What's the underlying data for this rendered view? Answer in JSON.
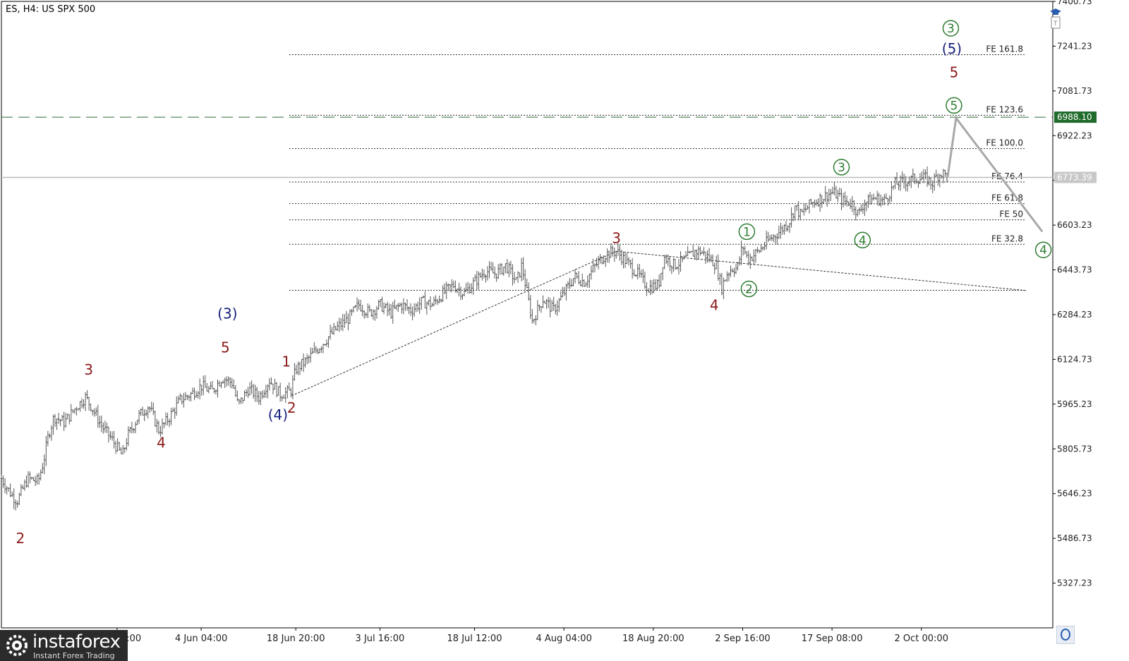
{
  "header": {
    "title": "ES, H4:  US SPX 500",
    "tool_t": "t"
  },
  "colors": {
    "wave_green": "#2e7d32",
    "wave_red": "#8b1a1a",
    "wave_navy": "#1a237e",
    "price_tag_bg": "#1f6b2a",
    "current_tag": "#c8c8c8"
  },
  "logo": {
    "name": "instaforex",
    "tagline": "Instant Forex Trading"
  },
  "chart_data": {
    "type": "candlestick-line",
    "symbol": "ES",
    "timeframe": "H4",
    "instrument": "US SPX 500",
    "ylim": [
      5170,
      7400
    ],
    "y_ticks": [
      "7400.73",
      "7241.23",
      "7081.73",
      "6922.23",
      "6763.23",
      "6603.23",
      "6443.73",
      "6284.23",
      "6124.73",
      "5965.23",
      "5805.73",
      "5646.23",
      "5486.73",
      "5327.23"
    ],
    "y_tick_values": [
      7400.73,
      7241.23,
      7081.73,
      6922.23,
      6763.23,
      6603.23,
      6443.73,
      6284.23,
      6124.73,
      5965.23,
      5805.73,
      5646.23,
      5486.73,
      5327.23
    ],
    "x_ticks": [
      "May 08:00",
      "4 Jun 04:00",
      "18 Jun 20:00",
      "3 Jul 16:00",
      "18 Jul 12:00",
      "4 Aug 04:00",
      "18 Aug 20:00",
      "2 Sep 16:00",
      "17 Sep 08:00",
      "2 Oct 00:00"
    ],
    "x_tick_index": [
      0.11,
      0.19,
      0.28,
      0.36,
      0.45,
      0.535,
      0.62,
      0.705,
      0.79,
      0.875
    ],
    "price_tags": {
      "target": "6988.10",
      "current": "6773.39"
    },
    "target_level": 6988.1,
    "current_level": 6773.39,
    "fib_levels": [
      {
        "label": "FE 161.8",
        "value": 7211
      },
      {
        "label": "FE 123.6",
        "value": 6995
      },
      {
        "label": "FE 100.0",
        "value": 6876
      },
      {
        "label": "FE 76.4",
        "value": 6757
      },
      {
        "label": "FE 61.8",
        "value": 6680
      },
      {
        "label": "FE 50",
        "value": 6622
      },
      {
        "label": "FE 32.8",
        "value": 6535
      },
      {
        "label": "",
        "value": 6371
      }
    ],
    "price_path": [
      [
        0.0,
        5700
      ],
      [
        0.01,
        5640
      ],
      [
        0.015,
        5620
      ],
      [
        0.025,
        5700
      ],
      [
        0.035,
        5690
      ],
      [
        0.04,
        5760
      ],
      [
        0.045,
        5860
      ],
      [
        0.05,
        5920
      ],
      [
        0.06,
        5900
      ],
      [
        0.07,
        5950
      ],
      [
        0.08,
        5990
      ],
      [
        0.085,
        5960
      ],
      [
        0.095,
        5890
      ],
      [
        0.105,
        5840
      ],
      [
        0.115,
        5780
      ],
      [
        0.12,
        5850
      ],
      [
        0.13,
        5920
      ],
      [
        0.14,
        5960
      ],
      [
        0.15,
        5870
      ],
      [
        0.16,
        5920
      ],
      [
        0.17,
        5980
      ],
      [
        0.18,
        6000
      ],
      [
        0.19,
        6030
      ],
      [
        0.2,
        6010
      ],
      [
        0.21,
        6060
      ],
      [
        0.22,
        6040
      ],
      [
        0.225,
        5960
      ],
      [
        0.235,
        6020
      ],
      [
        0.245,
        5990
      ],
      [
        0.255,
        6050
      ],
      [
        0.265,
        6000
      ],
      [
        0.275,
        6010
      ],
      [
        0.28,
        6090
      ],
      [
        0.29,
        6120
      ],
      [
        0.3,
        6160
      ],
      [
        0.31,
        6200
      ],
      [
        0.32,
        6240
      ],
      [
        0.33,
        6270
      ],
      [
        0.34,
        6320
      ],
      [
        0.35,
        6290
      ],
      [
        0.36,
        6320
      ],
      [
        0.37,
        6290
      ],
      [
        0.38,
        6320
      ],
      [
        0.39,
        6300
      ],
      [
        0.4,
        6330
      ],
      [
        0.41,
        6320
      ],
      [
        0.42,
        6360
      ],
      [
        0.43,
        6390
      ],
      [
        0.44,
        6360
      ],
      [
        0.45,
        6400
      ],
      [
        0.46,
        6440
      ],
      [
        0.47,
        6430
      ],
      [
        0.48,
        6460
      ],
      [
        0.49,
        6400
      ],
      [
        0.495,
        6460
      ],
      [
        0.505,
        6260
      ],
      [
        0.515,
        6340
      ],
      [
        0.525,
        6300
      ],
      [
        0.535,
        6360
      ],
      [
        0.545,
        6420
      ],
      [
        0.555,
        6400
      ],
      [
        0.565,
        6460
      ],
      [
        0.575,
        6500
      ],
      [
        0.585,
        6510
      ],
      [
        0.595,
        6470
      ],
      [
        0.605,
        6430
      ],
      [
        0.615,
        6380
      ],
      [
        0.625,
        6390
      ],
      [
        0.63,
        6490
      ],
      [
        0.64,
        6460
      ],
      [
        0.65,
        6480
      ],
      [
        0.66,
        6510
      ],
      [
        0.665,
        6510
      ],
      [
        0.675,
        6480
      ],
      [
        0.68,
        6460
      ],
      [
        0.685,
        6380
      ],
      [
        0.69,
        6430
      ],
      [
        0.695,
        6450
      ],
      [
        0.7,
        6450
      ],
      [
        0.705,
        6530
      ],
      [
        0.71,
        6480
      ],
      [
        0.72,
        6510
      ],
      [
        0.73,
        6550
      ],
      [
        0.74,
        6580
      ],
      [
        0.75,
        6620
      ],
      [
        0.755,
        6670
      ],
      [
        0.76,
        6640
      ],
      [
        0.77,
        6680
      ],
      [
        0.78,
        6700
      ],
      [
        0.79,
        6720
      ],
      [
        0.795,
        6710
      ],
      [
        0.8,
        6690
      ],
      [
        0.81,
        6680
      ],
      [
        0.815,
        6640
      ],
      [
        0.82,
        6680
      ],
      [
        0.83,
        6700
      ],
      [
        0.84,
        6690
      ],
      [
        0.85,
        6750
      ],
      [
        0.86,
        6760
      ],
      [
        0.87,
        6770
      ],
      [
        0.88,
        6770
      ],
      [
        0.885,
        6750
      ],
      [
        0.89,
        6780
      ],
      [
        0.895,
        6790
      ],
      [
        0.9,
        6773
      ]
    ],
    "projection": [
      [
        0.9,
        6775
      ],
      [
        0.908,
        6985
      ],
      [
        0.99,
        6580
      ]
    ],
    "wave_labels": [
      {
        "text": "2",
        "color": "red",
        "x": 0.018,
        "y": 5470
      },
      {
        "text": "3",
        "color": "red",
        "x": 0.083,
        "y": 6070
      },
      {
        "text": "4",
        "color": "red",
        "x": 0.152,
        "y": 5810
      },
      {
        "text": "5",
        "color": "red",
        "x": 0.213,
        "y": 6150
      },
      {
        "text": "(3)",
        "color": "navy",
        "x": 0.215,
        "y": 6270
      },
      {
        "text": "(4)",
        "color": "navy",
        "x": 0.263,
        "y": 5910
      },
      {
        "text": "1",
        "color": "red",
        "x": 0.271,
        "y": 6100
      },
      {
        "text": "2",
        "color": "red",
        "x": 0.276,
        "y": 5935
      },
      {
        "text": "3",
        "color": "red",
        "x": 0.585,
        "y": 6540
      },
      {
        "text": "4",
        "color": "red",
        "x": 0.678,
        "y": 6300
      },
      {
        "text": "5",
        "color": "red",
        "x": 0.906,
        "y": 7130
      }
    ],
    "circled_labels": [
      {
        "text": "1",
        "x": 0.709,
        "y": 6580
      },
      {
        "text": "2",
        "x": 0.711,
        "y": 6376
      },
      {
        "text": "3",
        "x": 0.799,
        "y": 6810
      },
      {
        "text": "4",
        "x": 0.819,
        "y": 6550
      },
      {
        "text": "5",
        "x": 0.906,
        "y": 7030
      },
      {
        "text": "3",
        "x": 0.903,
        "y": 7305
      },
      {
        "text": "4",
        "x": 0.991,
        "y": 6515
      }
    ],
    "navy_top_label": {
      "text": "(5)",
      "x": 0.904,
      "y": 7215
    },
    "trend_lines": [
      [
        [
          0.276,
          5995
        ],
        [
          0.585,
          6510
        ]
      ],
      [
        [
          0.585,
          6510
        ],
        [
          0.975,
          6370
        ]
      ]
    ]
  }
}
